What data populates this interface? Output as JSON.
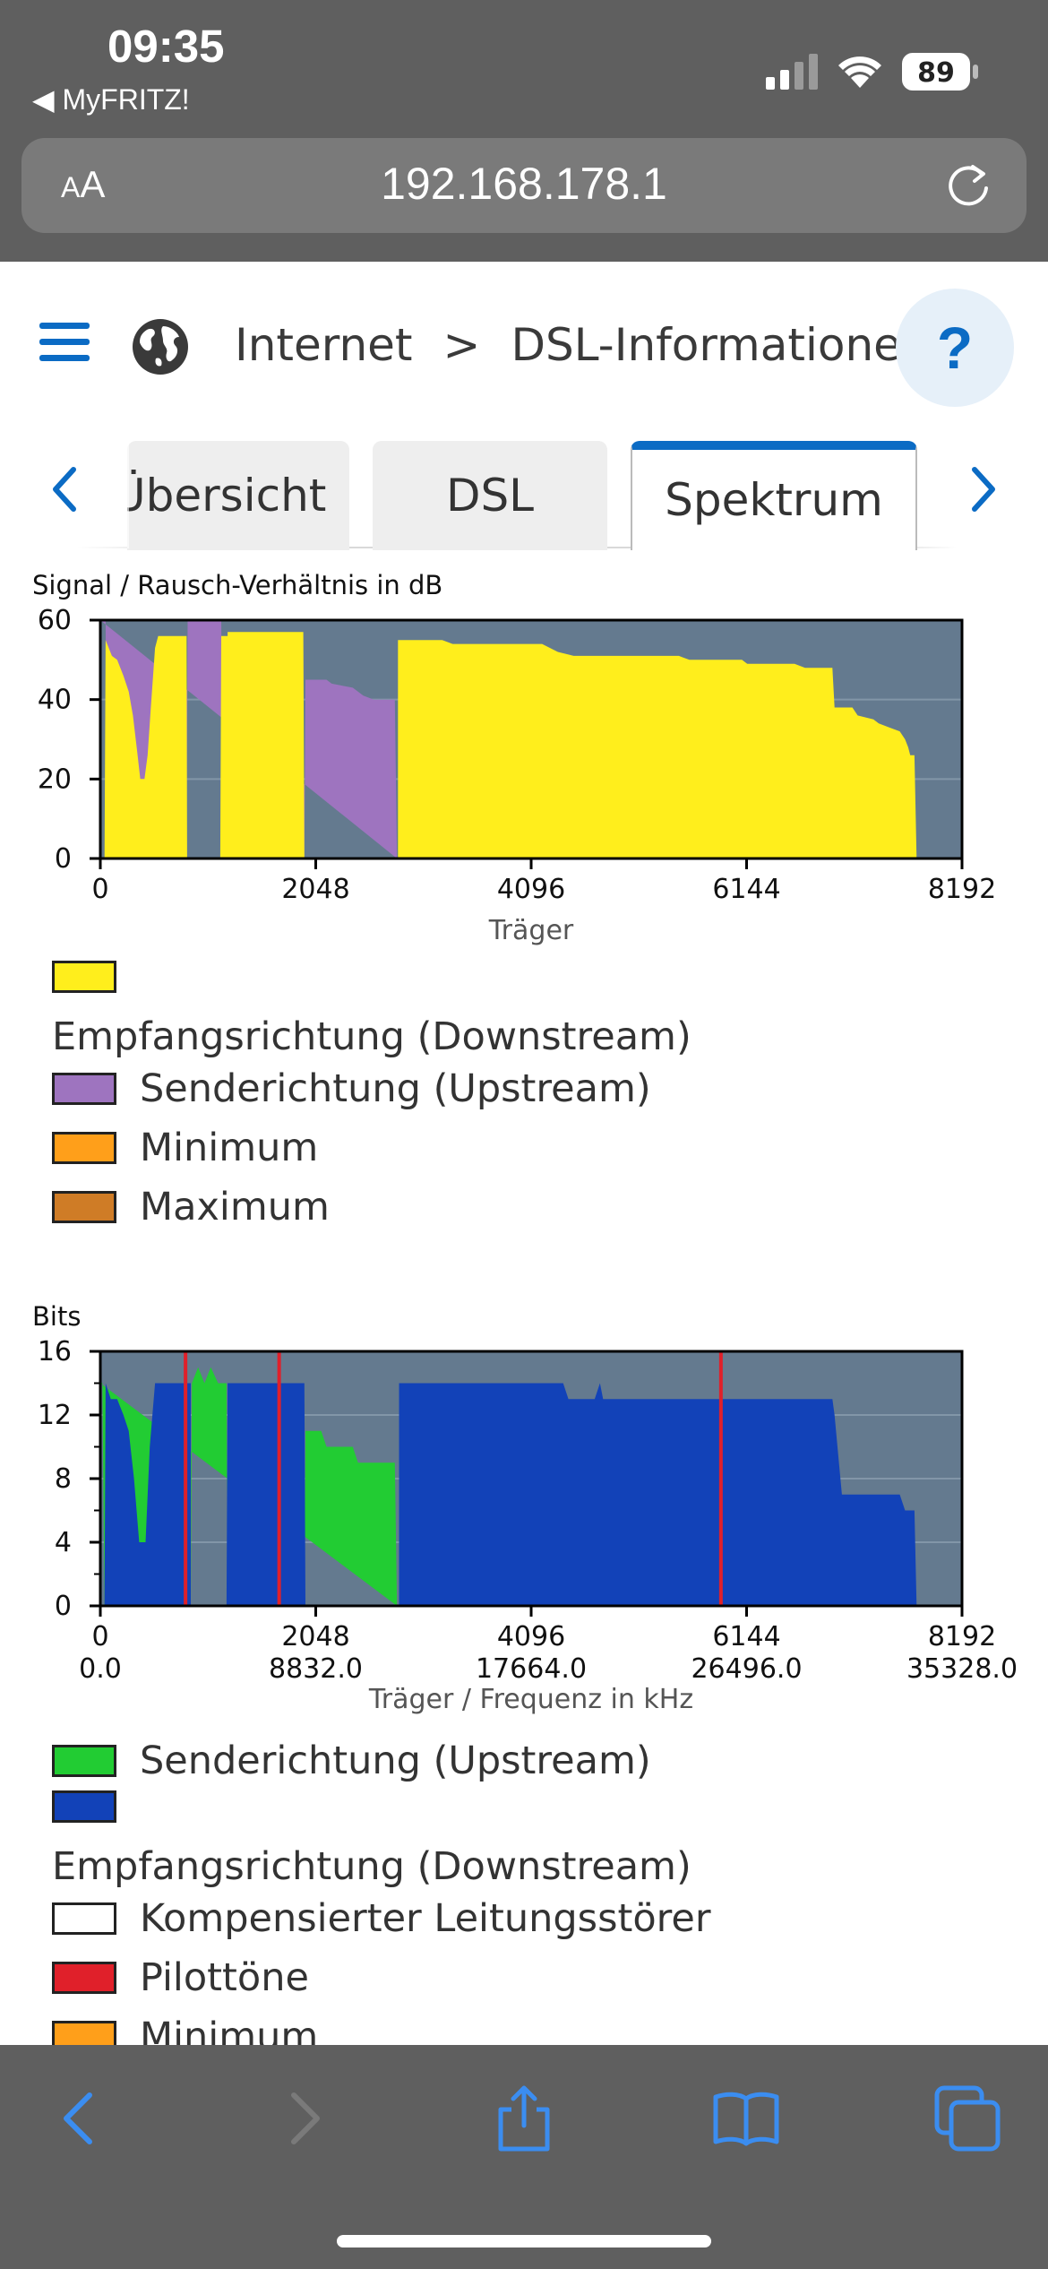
{
  "status_bar": {
    "time": "09:35",
    "back_app": "MyFRITZ!",
    "battery": "89"
  },
  "address_bar": {
    "aa_label_big": "A",
    "aa_label_small": "A",
    "url": "192.168.178.1"
  },
  "nav": {
    "breadcrumb_items": [
      "Internet",
      "DSL-Informationen"
    ],
    "breadcrumb_separator": ">",
    "help_label": "?"
  },
  "tabs": [
    {
      "label": "Übersicht",
      "active": false
    },
    {
      "label": "DSL",
      "active": false
    },
    {
      "label": "Spektrum",
      "active": true
    }
  ],
  "colors": {
    "accent": "#0b6bc4",
    "plot_bg": "#647a8f",
    "downstream_snr": "#ffee1c",
    "upstream_snr": "#9e74bf",
    "minimum": "#ff9f1a",
    "maximum": "#cf7c26",
    "upstream_bits": "#22cc33",
    "downstream_bits": "#1242b8",
    "pilot": "#e0202a"
  },
  "chart_data": [
    {
      "type": "area",
      "title": "Signal / Rausch-Verhältnis in dB",
      "xlabel": "Träger",
      "ylabel": "",
      "xlim": [
        0,
        8192
      ],
      "ylim": [
        0,
        60
      ],
      "x_ticks": [
        "0",
        "2048",
        "4096",
        "6144",
        "8192"
      ],
      "y_ticks": [
        "0",
        "20",
        "40",
        "60"
      ],
      "grid": true,
      "series": [
        {
          "name": "Senderichtung (Upstream)",
          "color_key": "upstream_snr",
          "points": [
            [
              0,
              60
            ],
            [
              50,
              60
            ],
            [
              60,
              0
            ],
            [
              820,
              0
            ],
            [
              830,
              60
            ],
            [
              1150,
              60
            ],
            [
              1170,
              0
            ],
            [
              1940,
              0
            ],
            [
              1950,
              45
            ],
            [
              2150,
              45
            ],
            [
              2200,
              44
            ],
            [
              2400,
              43
            ],
            [
              2500,
              41
            ],
            [
              2600,
              40
            ],
            [
              2800,
              40
            ],
            [
              2820,
              0
            ]
          ]
        },
        {
          "name": "Empfangsrichtung (Downstream)",
          "color_key": "downstream_snr",
          "points": [
            [
              40,
              0
            ],
            [
              50,
              55
            ],
            [
              110,
              51
            ],
            [
              160,
              50
            ],
            [
              220,
              46
            ],
            [
              270,
              42
            ],
            [
              310,
              36
            ],
            [
              350,
              27
            ],
            [
              380,
              20
            ],
            [
              420,
              20
            ],
            [
              450,
              26
            ],
            [
              480,
              38
            ],
            [
              520,
              53
            ],
            [
              550,
              56
            ],
            [
              820,
              56
            ],
            [
              825,
              0
            ],
            [
              1140,
              0
            ],
            [
              1150,
              56
            ],
            [
              1300,
              56
            ],
            [
              1300,
              0
            ],
            [
              1210,
              0
            ],
            [
              1210,
              57
            ],
            [
              1500,
              57
            ],
            [
              1930,
              57
            ],
            [
              1940,
              0
            ],
            [
              2830,
              0
            ],
            [
              2830,
              55
            ],
            [
              3250,
              55
            ],
            [
              3350,
              54
            ],
            [
              4200,
              54
            ],
            [
              4350,
              52
            ],
            [
              4500,
              51
            ],
            [
              5500,
              51
            ],
            [
              5600,
              50
            ],
            [
              6100,
              50
            ],
            [
              6150,
              49
            ],
            [
              6600,
              49
            ],
            [
              6700,
              48
            ],
            [
              6960,
              48
            ],
            [
              6980,
              38
            ],
            [
              7150,
              38
            ],
            [
              7200,
              36
            ],
            [
              7350,
              35
            ],
            [
              7400,
              34
            ],
            [
              7500,
              33
            ],
            [
              7600,
              32
            ],
            [
              7650,
              30
            ],
            [
              7680,
              28
            ],
            [
              7700,
              26
            ],
            [
              7740,
              26
            ],
            [
              7760,
              0
            ]
          ]
        }
      ]
    },
    {
      "type": "area",
      "title": "Bits",
      "xlabel": "Träger / Frequenz in kHz",
      "ylabel": "",
      "xlim": [
        0,
        8192
      ],
      "ylim": [
        0,
        16
      ],
      "x_ticks": [
        "0",
        "2048",
        "4096",
        "6144",
        "8192"
      ],
      "x_ticks_secondary": [
        "0.0",
        "8832.0",
        "17664.0",
        "26496.0",
        "35328.0"
      ],
      "y_ticks": [
        "0",
        "4",
        "8",
        "12",
        "16"
      ],
      "grid": true,
      "pilot_tones_x": [
        810,
        1700,
        5900
      ],
      "series": [
        {
          "name": "Senderichtung (Upstream)",
          "color_key": "upstream_bits",
          "points": [
            [
              0,
              14
            ],
            [
              20,
              14
            ],
            [
              40,
              0
            ],
            [
              860,
              0
            ],
            [
              870,
              14
            ],
            [
              930,
              15
            ],
            [
              990,
              14
            ],
            [
              1050,
              15
            ],
            [
              1120,
              14
            ],
            [
              1200,
              14
            ],
            [
              1210,
              0
            ],
            [
              1940,
              0
            ],
            [
              1950,
              11
            ],
            [
              2100,
              11
            ],
            [
              2150,
              10
            ],
            [
              2400,
              10
            ],
            [
              2450,
              9
            ],
            [
              2800,
              9
            ],
            [
              2820,
              0
            ]
          ]
        },
        {
          "name": "Empfangsrichtung (Downstream)",
          "color_key": "downstream_bits",
          "points": [
            [
              40,
              0
            ],
            [
              50,
              14
            ],
            [
              100,
              13
            ],
            [
              160,
              13
            ],
            [
              220,
              12
            ],
            [
              270,
              11
            ],
            [
              320,
              8
            ],
            [
              370,
              4
            ],
            [
              430,
              4
            ],
            [
              470,
              10
            ],
            [
              520,
              14
            ],
            [
              860,
              14
            ],
            [
              860,
              0
            ],
            [
              1200,
              0
            ],
            [
              1210,
              14
            ],
            [
              1940,
              14
            ],
            [
              1950,
              0
            ],
            [
              2840,
              0
            ],
            [
              2840,
              14
            ],
            [
              4400,
              14
            ],
            [
              4450,
              13
            ],
            [
              4700,
              13
            ],
            [
              4750,
              14
            ],
            [
              4780,
              13
            ],
            [
              6960,
              13
            ],
            [
              6980,
              12
            ],
            [
              7050,
              7
            ],
            [
              7600,
              7
            ],
            [
              7650,
              6
            ],
            [
              7700,
              6
            ],
            [
              7740,
              6
            ],
            [
              7760,
              0
            ]
          ]
        }
      ]
    }
  ],
  "legend_snr": [
    {
      "label": "Empfangsrichtung (Downstream)",
      "color_key": "downstream_snr",
      "wrap": true
    },
    {
      "label": "Senderichtung (Upstream)",
      "color_key": "upstream_snr",
      "wrap": false
    },
    {
      "label": "Minimum",
      "color_key": "minimum",
      "wrap": false
    },
    {
      "label": "Maximum",
      "color_key": "maximum",
      "wrap": false
    }
  ],
  "legend_bits": [
    {
      "label": "Senderichtung (Upstream)",
      "color_key": "upstream_bits",
      "wrap": false
    },
    {
      "label": "Empfangsrichtung (Downstream)",
      "color_key": "downstream_bits",
      "wrap": true
    },
    {
      "label": "Kompensierter Leitungsstörer",
      "color_key": "white",
      "wrap": false
    },
    {
      "label": "Pilottöne",
      "color_key": "pilot",
      "wrap": false
    },
    {
      "label": "Minimum",
      "color_key": "minimum",
      "wrap": false
    }
  ]
}
